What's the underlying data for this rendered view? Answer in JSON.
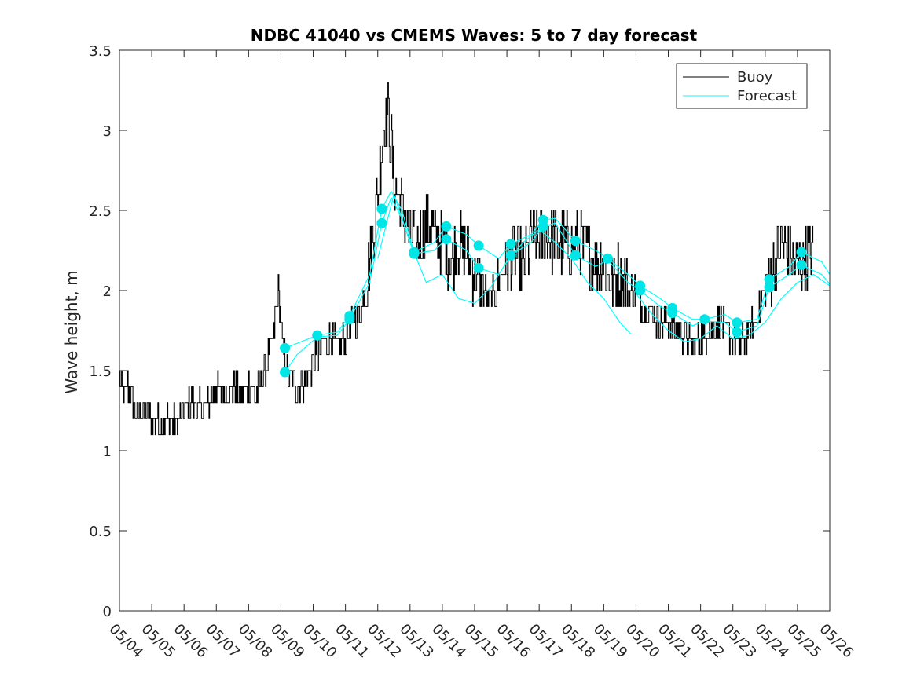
{
  "chart_data": {
    "type": "line",
    "title": "NDBC 41040 vs CMEMS Waves: 5 to 7 day forecast",
    "xlabel": "",
    "ylabel": "Wave height, m",
    "ylim": [
      0,
      3.5
    ],
    "yticks": [
      0,
      0.5,
      1,
      1.5,
      2,
      2.5,
      3,
      3.5
    ],
    "ytick_labels": [
      "0",
      "0.5",
      "1",
      "1.5",
      "2",
      "2.5",
      "3",
      "3.5"
    ],
    "xlim": [
      "05/04",
      "05/26"
    ],
    "xtick_labels": [
      "05/04",
      "05/05",
      "05/06",
      "05/07",
      "05/08",
      "05/09",
      "05/10",
      "05/11",
      "05/12",
      "05/13",
      "05/14",
      "05/15",
      "05/16",
      "05/17",
      "05/18",
      "05/19",
      "05/20",
      "05/21",
      "05/22",
      "05/23",
      "05/24",
      "05/25",
      "05/26"
    ],
    "grid": false,
    "legend_position": "top-right",
    "colors": {
      "buoy": "#000000",
      "forecast": "#00ffff",
      "forecast_marker": "#00e5e5"
    },
    "series": [
      {
        "name": "Buoy",
        "x_dates": [
          "05/04",
          "05/26"
        ],
        "points": [
          [
            "05/04 00:00",
            1.45
          ],
          [
            "05/04 03:00",
            1.35
          ],
          [
            "05/04 06:00",
            1.4
          ],
          [
            "05/04 09:00",
            1.3
          ],
          [
            "05/04 12:00",
            1.25
          ],
          [
            "05/04 18:00",
            1.25
          ],
          [
            "05/05 00:00",
            1.2
          ],
          [
            "05/05 06:00",
            1.15
          ],
          [
            "05/05 12:00",
            1.2
          ],
          [
            "05/05 18:00",
            1.15
          ],
          [
            "05/06 00:00",
            1.25
          ],
          [
            "05/06 06:00",
            1.3
          ],
          [
            "05/06 12:00",
            1.25
          ],
          [
            "05/06 18:00",
            1.3
          ],
          [
            "05/07 00:00",
            1.4
          ],
          [
            "05/07 06:00",
            1.35
          ],
          [
            "05/07 12:00",
            1.4
          ],
          [
            "05/07 18:00",
            1.35
          ],
          [
            "05/08 00:00",
            1.4
          ],
          [
            "05/08 06:00",
            1.35
          ],
          [
            "05/08 12:00",
            1.5
          ],
          [
            "05/08 18:00",
            1.7
          ],
          [
            "05/08 22:00",
            2.0
          ],
          [
            "05/09 02:00",
            1.6
          ],
          [
            "05/09 06:00",
            1.45
          ],
          [
            "05/09 12:00",
            1.4
          ],
          [
            "05/09 18:00",
            1.45
          ],
          [
            "05/10 00:00",
            1.55
          ],
          [
            "05/10 06:00",
            1.65
          ],
          [
            "05/10 12:00",
            1.7
          ],
          [
            "05/10 18:00",
            1.65
          ],
          [
            "05/11 00:00",
            1.7
          ],
          [
            "05/11 06:00",
            1.8
          ],
          [
            "05/11 12:00",
            1.9
          ],
          [
            "05/11 18:00",
            2.2
          ],
          [
            "05/12 00:00",
            2.6
          ],
          [
            "05/12 04:00",
            3.0
          ],
          [
            "05/12 08:00",
            3.1
          ],
          [
            "05/12 12:00",
            2.7
          ],
          [
            "05/12 18:00",
            2.5
          ],
          [
            "05/13 00:00",
            2.35
          ],
          [
            "05/13 06:00",
            2.3
          ],
          [
            "05/13 12:00",
            2.4
          ],
          [
            "05/13 18:00",
            2.35
          ],
          [
            "05/14 00:00",
            2.3
          ],
          [
            "05/14 06:00",
            2.2
          ],
          [
            "05/14 12:00",
            2.3
          ],
          [
            "05/14 18:00",
            2.25
          ],
          [
            "05/15 00:00",
            2.1
          ],
          [
            "05/15 06:00",
            2.0
          ],
          [
            "05/15 12:00",
            1.95
          ],
          [
            "05/15 18:00",
            2.05
          ],
          [
            "05/16 00:00",
            2.2
          ],
          [
            "05/16 06:00",
            2.2
          ],
          [
            "05/16 12:00",
            2.15
          ],
          [
            "05/16 18:00",
            2.3
          ],
          [
            "05/17 00:00",
            2.3
          ],
          [
            "05/17 06:00",
            2.35
          ],
          [
            "05/17 12:00",
            2.3
          ],
          [
            "05/17 18:00",
            2.3
          ],
          [
            "05/18 00:00",
            2.25
          ],
          [
            "05/18 06:00",
            2.3
          ],
          [
            "05/18 12:00",
            2.25
          ],
          [
            "05/18 18:00",
            2.2
          ],
          [
            "05/19 00:00",
            2.15
          ],
          [
            "05/19 06:00",
            2.05
          ],
          [
            "05/19 12:00",
            2.1
          ],
          [
            "05/19 18:00",
            2.0
          ],
          [
            "05/20 00:00",
            2.0
          ],
          [
            "05/20 06:00",
            1.9
          ],
          [
            "05/20 12:00",
            1.85
          ],
          [
            "05/20 18:00",
            1.8
          ],
          [
            "05/21 00:00",
            1.8
          ],
          [
            "05/21 06:00",
            1.75
          ],
          [
            "05/21 12:00",
            1.7
          ],
          [
            "05/21 18:00",
            1.65
          ],
          [
            "05/22 00:00",
            1.7
          ],
          [
            "05/22 06:00",
            1.75
          ],
          [
            "05/22 12:00",
            1.8
          ],
          [
            "05/22 18:00",
            1.75
          ],
          [
            "05/23 00:00",
            1.7
          ],
          [
            "05/23 06:00",
            1.65
          ],
          [
            "05/23 12:00",
            1.75
          ],
          [
            "05/23 18:00",
            1.85
          ],
          [
            "05/24 00:00",
            2.0
          ],
          [
            "05/24 06:00",
            2.15
          ],
          [
            "05/24 12:00",
            2.3
          ],
          [
            "05/24 18:00",
            2.2
          ],
          [
            "05/25 00:00",
            2.15
          ],
          [
            "05/25 06:00",
            2.2
          ],
          [
            "05/25 12:00",
            2.25
          ]
        ]
      },
      {
        "name": "Forecast",
        "runs": [
          [
            [
              "05/09 03:00",
              1.64
            ],
            [
              "05/09 12:00",
              1.67
            ],
            [
              "05/10 03:00",
              1.72
            ],
            [
              "05/10 18:00",
              1.74
            ],
            [
              "05/11 03:00",
              1.84
            ],
            [
              "05/11 18:00",
              2.1
            ],
            [
              "05/12 03:00",
              2.51
            ],
            [
              "05/12 10:00",
              2.62
            ],
            [
              "05/12 18:00",
              2.5
            ],
            [
              "05/13 03:00",
              2.24
            ],
            [
              "05/13 18:00",
              2.3
            ],
            [
              "05/14 03:00",
              2.4
            ],
            [
              "05/14 18:00",
              2.35
            ],
            [
              "05/15 03:00",
              2.28
            ],
            [
              "05/15 18:00",
              2.2
            ],
            [
              "05/16 03:00",
              2.29
            ],
            [
              "05/16 18:00",
              2.35
            ],
            [
              "05/17 03:00",
              2.44
            ],
            [
              "05/17 12:00",
              2.45
            ],
            [
              "05/18 03:00",
              2.31
            ],
            [
              "05/18 18:00",
              2.25
            ],
            [
              "05/19 03:00",
              2.2
            ],
            [
              "05/19 18:00",
              2.1
            ],
            [
              "05/20 03:00",
              2.03
            ],
            [
              "05/20 18:00",
              1.95
            ],
            [
              "05/21 03:00",
              1.89
            ],
            [
              "05/21 18:00",
              1.82
            ],
            [
              "05/22 03:00",
              1.82
            ],
            [
              "05/22 18:00",
              1.85
            ],
            [
              "05/23 03:00",
              1.8
            ],
            [
              "05/23 18:00",
              1.82
            ],
            [
              "05/24 03:00",
              2.07
            ],
            [
              "05/24 18:00",
              2.15
            ],
            [
              "05/25 03:00",
              2.24
            ],
            [
              "05/25 18:00",
              2.18
            ],
            [
              "05/26 00:00",
              2.1
            ]
          ],
          [
            [
              "05/09 03:00",
              1.49
            ],
            [
              "05/09 12:00",
              1.6
            ],
            [
              "05/10 03:00",
              1.71
            ],
            [
              "05/10 18:00",
              1.72
            ],
            [
              "05/11 03:00",
              1.82
            ],
            [
              "05/11 18:00",
              2.05
            ],
            [
              "05/12 03:00",
              2.42
            ],
            [
              "05/12 10:00",
              2.58
            ],
            [
              "05/12 18:00",
              2.45
            ],
            [
              "05/13 03:00",
              2.23
            ],
            [
              "05/13 18:00",
              2.25
            ],
            [
              "05/14 03:00",
              2.32
            ],
            [
              "05/14 18:00",
              2.25
            ],
            [
              "05/15 03:00",
              2.14
            ],
            [
              "05/15 18:00",
              2.1
            ],
            [
              "05/16 03:00",
              2.22
            ],
            [
              "05/16 18:00",
              2.3
            ],
            [
              "05/17 03:00",
              2.4
            ],
            [
              "05/17 12:00",
              2.42
            ],
            [
              "05/18 03:00",
              2.22
            ],
            [
              "05/18 18:00",
              2.15
            ],
            [
              "05/19 03:00",
              2.19
            ],
            [
              "05/19 18:00",
              2.05
            ],
            [
              "05/20 03:00",
              2.0
            ],
            [
              "05/20 18:00",
              1.9
            ],
            [
              "05/21 03:00",
              1.86
            ],
            [
              "05/21 18:00",
              1.78
            ],
            [
              "05/22 03:00",
              1.81
            ],
            [
              "05/22 18:00",
              1.8
            ],
            [
              "05/23 03:00",
              1.74
            ],
            [
              "05/23 18:00",
              1.78
            ],
            [
              "05/24 03:00",
              2.02
            ],
            [
              "05/24 18:00",
              2.1
            ],
            [
              "05/25 03:00",
              2.16
            ],
            [
              "05/25 18:00",
              2.1
            ],
            [
              "05/26 00:00",
              2.04
            ]
          ],
          [
            [
              "05/12 00:00",
              2.2
            ],
            [
              "05/12 12:00",
              2.6
            ],
            [
              "05/13 00:00",
              2.3
            ],
            [
              "05/13 12:00",
              2.05
            ],
            [
              "05/14 00:00",
              2.1
            ],
            [
              "05/14 12:00",
              1.95
            ],
            [
              "05/15 00:00",
              1.92
            ],
            [
              "05/15 12:00",
              2.02
            ],
            [
              "05/16 00:00",
              2.18
            ],
            [
              "05/16 12:00",
              2.3
            ],
            [
              "05/17 00:00",
              2.38
            ],
            [
              "05/17 12:00",
              2.3
            ],
            [
              "05/18 00:00",
              2.2
            ],
            [
              "05/18 12:00",
              2.05
            ],
            [
              "05/19 00:00",
              1.95
            ],
            [
              "05/19 12:00",
              1.8
            ],
            [
              "05/19 20:00",
              1.73
            ]
          ],
          [
            [
              "05/20 00:00",
              1.98
            ],
            [
              "05/20 12:00",
              1.85
            ],
            [
              "05/21 00:00",
              1.75
            ],
            [
              "05/21 12:00",
              1.68
            ],
            [
              "05/22 00:00",
              1.7
            ],
            [
              "05/22 12:00",
              1.78
            ],
            [
              "05/23 00:00",
              1.7
            ],
            [
              "05/23 12:00",
              1.72
            ],
            [
              "05/24 00:00",
              1.8
            ],
            [
              "05/24 12:00",
              1.95
            ],
            [
              "05/25 00:00",
              2.05
            ],
            [
              "05/25 12:00",
              2.1
            ],
            [
              "05/26 00:00",
              2.03
            ]
          ]
        ],
        "markers": [
          [
            "05/09 03:00",
            1.64
          ],
          [
            "05/09 03:00",
            1.49
          ],
          [
            "05/10 03:00",
            1.72
          ],
          [
            "05/11 03:00",
            1.84
          ],
          [
            "05/11 03:00",
            1.82
          ],
          [
            "05/12 03:00",
            2.51
          ],
          [
            "05/12 03:00",
            2.42
          ],
          [
            "05/13 03:00",
            2.24
          ],
          [
            "05/13 03:00",
            2.23
          ],
          [
            "05/14 03:00",
            2.4
          ],
          [
            "05/14 03:00",
            2.32
          ],
          [
            "05/15 03:00",
            2.28
          ],
          [
            "05/15 03:00",
            2.14
          ],
          [
            "05/16 03:00",
            2.29
          ],
          [
            "05/16 03:00",
            2.22
          ],
          [
            "05/17 03:00",
            2.44
          ],
          [
            "05/17 03:00",
            2.4
          ],
          [
            "05/18 03:00",
            2.31
          ],
          [
            "05/18 03:00",
            2.22
          ],
          [
            "05/19 03:00",
            2.2
          ],
          [
            "05/20 03:00",
            2.03
          ],
          [
            "05/20 03:00",
            2.0
          ],
          [
            "05/21 03:00",
            1.89
          ],
          [
            "05/21 03:00",
            1.86
          ],
          [
            "05/22 03:00",
            1.82
          ],
          [
            "05/23 03:00",
            1.8
          ],
          [
            "05/23 03:00",
            1.74
          ],
          [
            "05/24 03:00",
            2.07
          ],
          [
            "05/24 03:00",
            2.02
          ],
          [
            "05/25 03:00",
            2.24
          ],
          [
            "05/25 03:00",
            2.16
          ]
        ]
      }
    ]
  }
}
